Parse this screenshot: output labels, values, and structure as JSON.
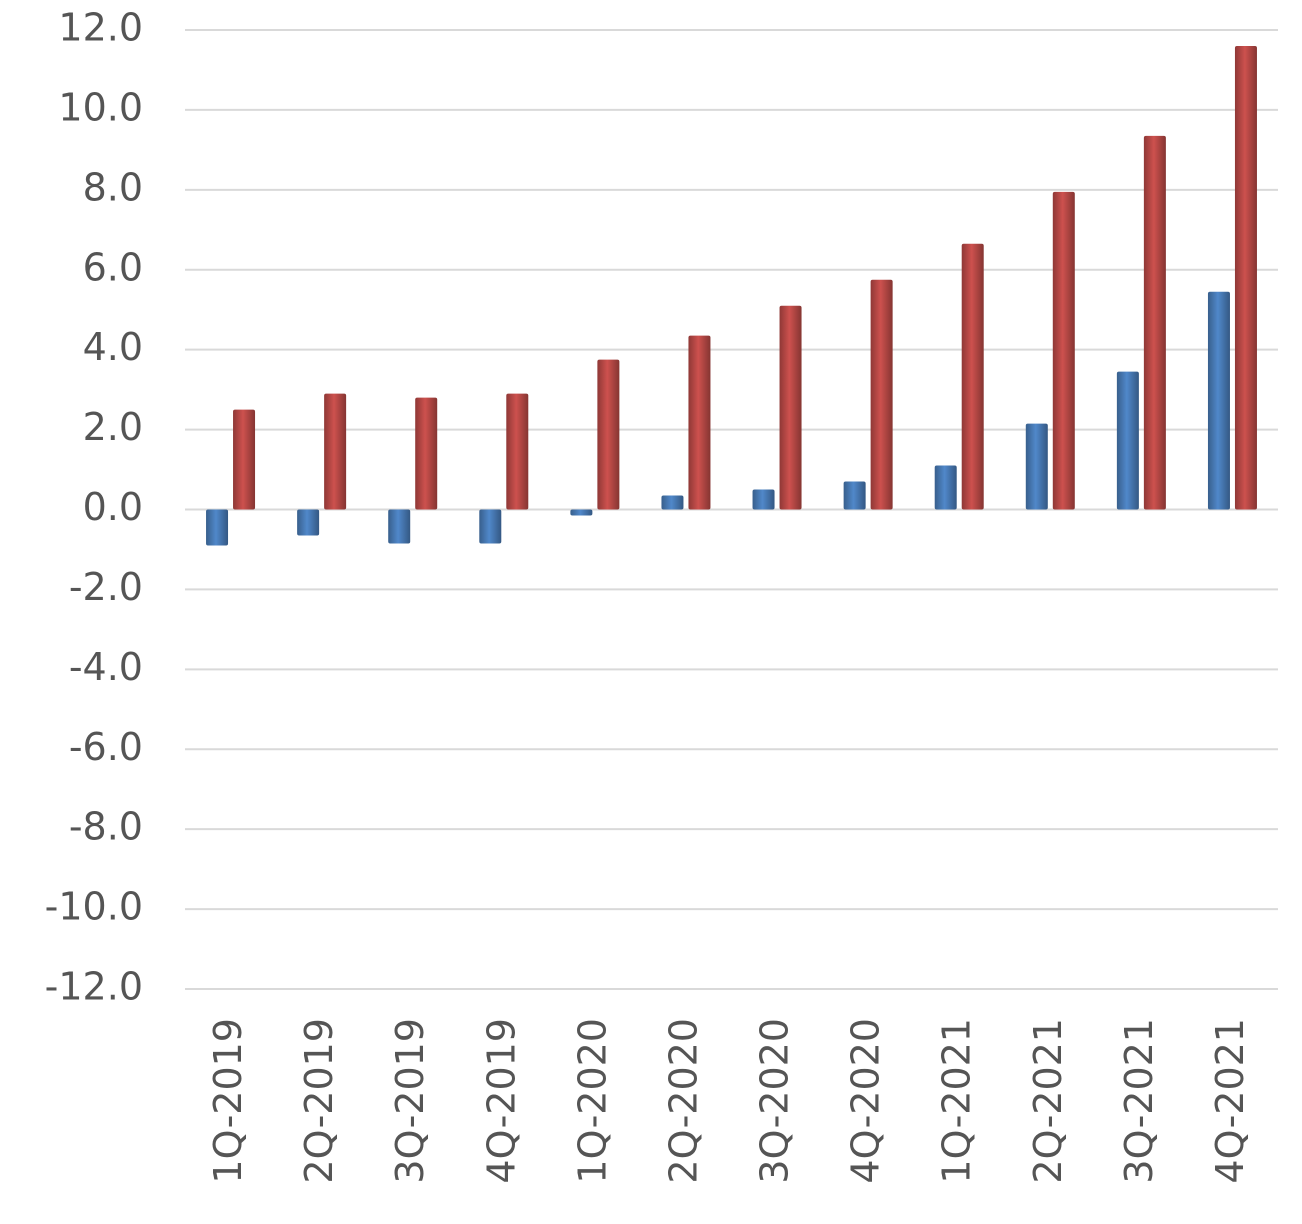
{
  "chart_data": {
    "type": "bar",
    "categories": [
      "1Q-2019",
      "2Q-2019",
      "3Q-2019",
      "4Q-2019",
      "1Q-2020",
      "2Q-2020",
      "3Q-2020",
      "4Q-2020",
      "1Q-2021",
      "2Q-2021",
      "3Q-2021",
      "4Q-2021"
    ],
    "series": [
      {
        "color": "#4a7ebb",
        "values": [
          -0.9,
          -0.65,
          -0.85,
          -0.85,
          -0.15,
          0.35,
          0.5,
          0.7,
          1.1,
          2.15,
          3.45,
          5.45
        ]
      },
      {
        "color": "#be4b48",
        "values": [
          2.5,
          2.9,
          2.8,
          2.9,
          3.75,
          4.35,
          5.1,
          5.75,
          6.65,
          7.95,
          9.35,
          11.6
        ]
      }
    ],
    "ylim": [
      -12,
      12
    ],
    "yticks": [
      {
        "value": 12,
        "label": "12.0"
      },
      {
        "value": 10,
        "label": "10.0"
      },
      {
        "value": 8,
        "label": "8.0"
      },
      {
        "value": 6,
        "label": "6.0"
      },
      {
        "value": 4,
        "label": "4.0"
      },
      {
        "value": 2,
        "label": "2.0"
      },
      {
        "value": 0,
        "label": "0.0"
      },
      {
        "value": -2,
        "label": "-2.0"
      },
      {
        "value": -4,
        "label": "-4.0"
      },
      {
        "value": -6,
        "label": "-6.0"
      },
      {
        "value": -8,
        "label": "-8.0"
      },
      {
        "value": -10,
        "label": "-10.0"
      },
      {
        "value": -12,
        "label": "-12.0"
      }
    ],
    "grid": true
  }
}
